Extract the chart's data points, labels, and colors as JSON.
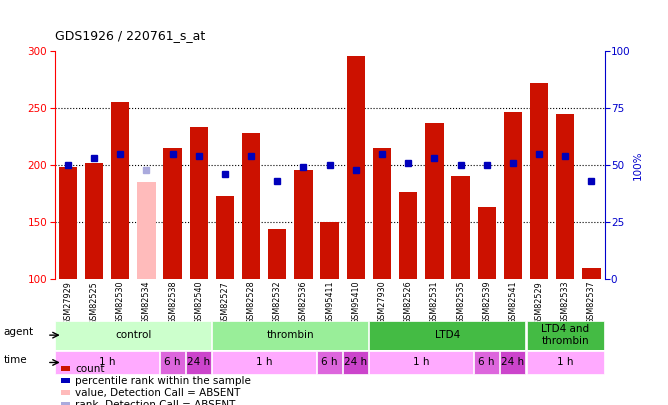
{
  "title": "GDS1926 / 220761_s_at",
  "samples": [
    "GSM27929",
    "GSM82525",
    "GSM82530",
    "GSM82534",
    "GSM82538",
    "GSM82540",
    "GSM82527",
    "GSM82528",
    "GSM82532",
    "GSM82536",
    "GSM95411",
    "GSM95410",
    "GSM27930",
    "GSM82526",
    "GSM82531",
    "GSM82535",
    "GSM82539",
    "GSM82541",
    "GSM82529",
    "GSM82533",
    "GSM82537"
  ],
  "bar_values": [
    198,
    202,
    255,
    185,
    215,
    233,
    173,
    228,
    144,
    196,
    150,
    295,
    215,
    176,
    237,
    190,
    163,
    246,
    272,
    245,
    110
  ],
  "bar_absent": [
    false,
    false,
    false,
    true,
    false,
    false,
    false,
    false,
    false,
    false,
    false,
    false,
    false,
    false,
    false,
    false,
    false,
    false,
    false,
    false,
    false
  ],
  "percentile_values": [
    50,
    53,
    55,
    48,
    55,
    54,
    46,
    54,
    43,
    49,
    50,
    48,
    55,
    51,
    53,
    50,
    50,
    51,
    55,
    54,
    43
  ],
  "percentile_absent": [
    false,
    false,
    false,
    true,
    false,
    false,
    false,
    false,
    false,
    false,
    false,
    false,
    false,
    false,
    false,
    false,
    false,
    false,
    false,
    false,
    false
  ],
  "bar_color": "#cc1100",
  "bar_absent_color": "#ffbbbb",
  "percentile_color": "#0000bb",
  "percentile_absent_color": "#aaaadd",
  "agent_groups": [
    {
      "label": "control",
      "start": 0,
      "end": 6,
      "color": "#ccffcc"
    },
    {
      "label": "thrombin",
      "start": 6,
      "end": 12,
      "color": "#99ee99"
    },
    {
      "label": "LTD4",
      "start": 12,
      "end": 18,
      "color": "#44bb44"
    },
    {
      "label": "LTD4 and\nthrombin",
      "start": 18,
      "end": 21,
      "color": "#44bb44"
    }
  ],
  "time_groups": [
    {
      "label": "1 h",
      "start": 0,
      "end": 4,
      "color": "#ffaaff"
    },
    {
      "label": "6 h",
      "start": 4,
      "end": 5,
      "color": "#dd66dd"
    },
    {
      "label": "24 h",
      "start": 5,
      "end": 6,
      "color": "#cc44cc"
    },
    {
      "label": "1 h",
      "start": 6,
      "end": 10,
      "color": "#ffaaff"
    },
    {
      "label": "6 h",
      "start": 10,
      "end": 11,
      "color": "#dd66dd"
    },
    {
      "label": "24 h",
      "start": 11,
      "end": 12,
      "color": "#cc44cc"
    },
    {
      "label": "1 h",
      "start": 12,
      "end": 16,
      "color": "#ffaaff"
    },
    {
      "label": "6 h",
      "start": 16,
      "end": 17,
      "color": "#dd66dd"
    },
    {
      "label": "24 h",
      "start": 17,
      "end": 18,
      "color": "#cc44cc"
    },
    {
      "label": "1 h",
      "start": 18,
      "end": 21,
      "color": "#ffaaff"
    }
  ],
  "legend_items": [
    {
      "label": "count",
      "color": "#cc1100"
    },
    {
      "label": "percentile rank within the sample",
      "color": "#0000bb"
    },
    {
      "label": "value, Detection Call = ABSENT",
      "color": "#ffbbbb"
    },
    {
      "label": "rank, Detection Call = ABSENT",
      "color": "#aaaadd"
    }
  ],
  "plot_bg": "#ffffff",
  "fig_bg": "#ffffff",
  "xtick_bg": "#dddddd"
}
